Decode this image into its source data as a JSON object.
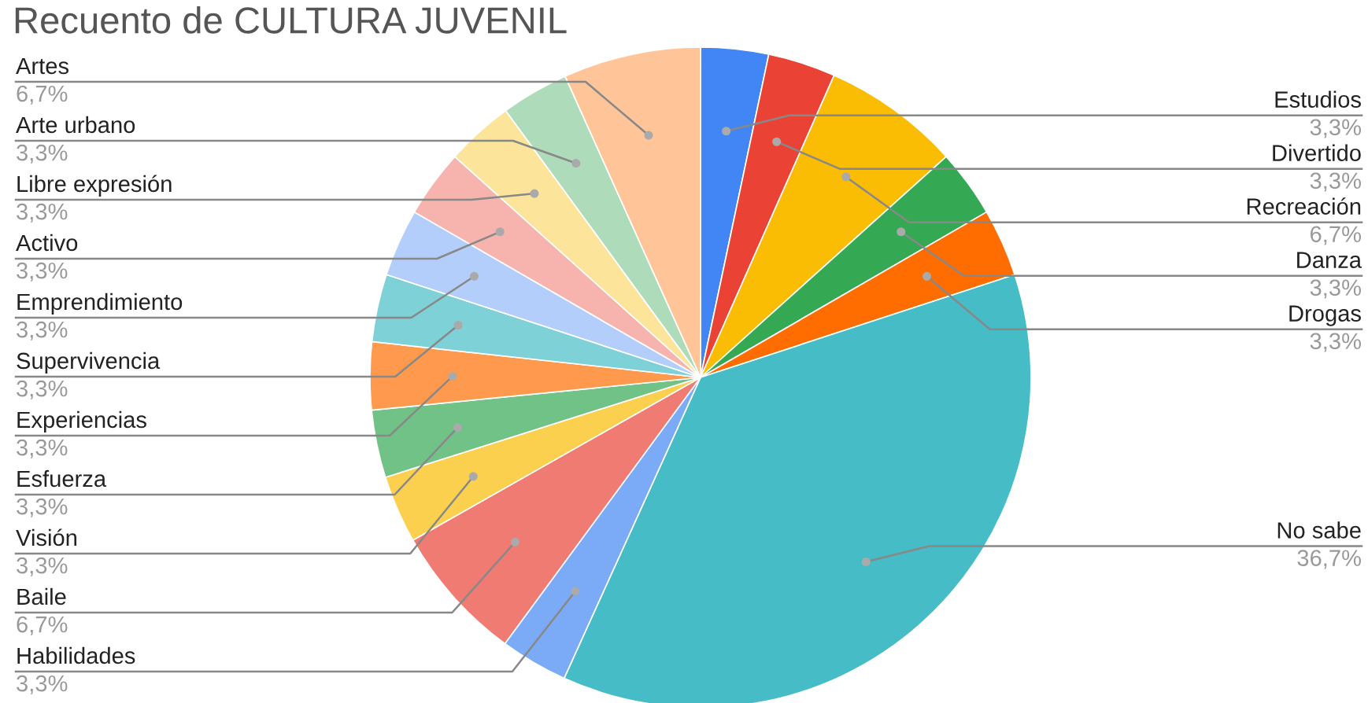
{
  "chart_data": {
    "type": "pie",
    "title": "Recuento de CULTURA JUVENIL",
    "categories": [
      "Estudios",
      "Divertido",
      "Recreación",
      "Danza",
      "Drogas",
      "No sabe",
      "Habilidades",
      "Baile",
      "Visión",
      "Esfuerza",
      "Experiencias",
      "Supervivencia",
      "Emprendimiento",
      "Activo",
      "Libre expresión",
      "Arte urbano",
      "Artes"
    ],
    "values": [
      3.3,
      3.3,
      6.7,
      3.3,
      3.3,
      36.7,
      3.3,
      6.7,
      3.3,
      3.3,
      3.3,
      3.3,
      3.3,
      3.3,
      3.3,
      3.3,
      6.7
    ],
    "value_labels": [
      "3,3%",
      "3,3%",
      "6,7%",
      "3,3%",
      "3,3%",
      "36,7%",
      "3,3%",
      "6,7%",
      "3,3%",
      "3,3%",
      "3,3%",
      "3,3%",
      "3,3%",
      "3,3%",
      "3,3%",
      "3,3%",
      "6,7%"
    ],
    "colors": [
      "#4285f4",
      "#ea4335",
      "#fbbc04",
      "#34a853",
      "#ff6d01",
      "#46bdc6",
      "#7baaf7",
      "#f07b72",
      "#fcd04f",
      "#71c287",
      "#ff994d",
      "#7ed1d7",
      "#b3cefb",
      "#f7b4ae",
      "#fde49b",
      "#aedcba",
      "#ffc599"
    ],
    "legend": false
  }
}
